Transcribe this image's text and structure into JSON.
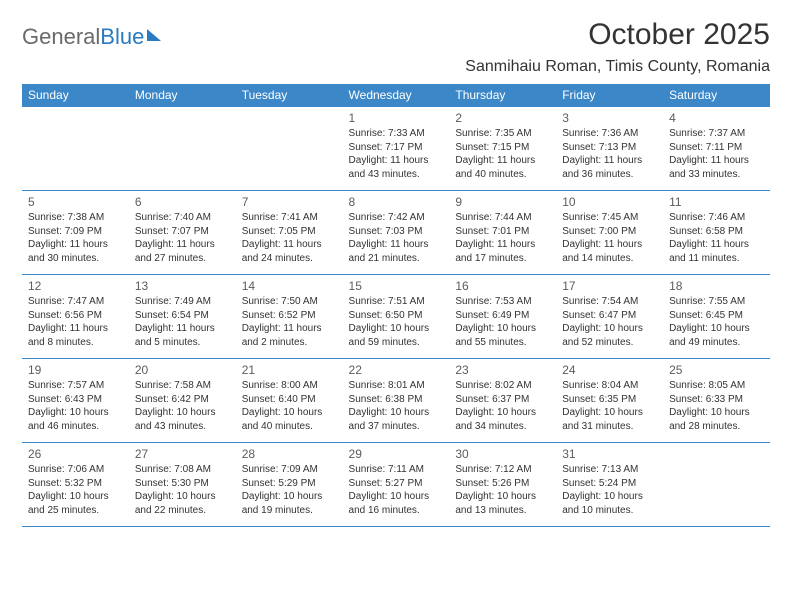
{
  "brand": {
    "part1": "General",
    "part2": "Blue"
  },
  "title": "October 2025",
  "location": "Sanmihaiu Roman, Timis County, Romania",
  "colors": {
    "header_bg": "#3b87c8",
    "header_text": "#ffffff",
    "rule": "#3b87c8",
    "text": "#333333",
    "daynum": "#5c5c5c",
    "logo_gray": "#6a6a6a",
    "logo_blue": "#2a7ac0"
  },
  "day_headers": [
    "Sunday",
    "Monday",
    "Tuesday",
    "Wednesday",
    "Thursday",
    "Friday",
    "Saturday"
  ],
  "weeks": [
    [
      null,
      null,
      null,
      {
        "n": "1",
        "sr": "7:33 AM",
        "ss": "7:17 PM",
        "dl": "11 hours and 43 minutes."
      },
      {
        "n": "2",
        "sr": "7:35 AM",
        "ss": "7:15 PM",
        "dl": "11 hours and 40 minutes."
      },
      {
        "n": "3",
        "sr": "7:36 AM",
        "ss": "7:13 PM",
        "dl": "11 hours and 36 minutes."
      },
      {
        "n": "4",
        "sr": "7:37 AM",
        "ss": "7:11 PM",
        "dl": "11 hours and 33 minutes."
      }
    ],
    [
      {
        "n": "5",
        "sr": "7:38 AM",
        "ss": "7:09 PM",
        "dl": "11 hours and 30 minutes."
      },
      {
        "n": "6",
        "sr": "7:40 AM",
        "ss": "7:07 PM",
        "dl": "11 hours and 27 minutes."
      },
      {
        "n": "7",
        "sr": "7:41 AM",
        "ss": "7:05 PM",
        "dl": "11 hours and 24 minutes."
      },
      {
        "n": "8",
        "sr": "7:42 AM",
        "ss": "7:03 PM",
        "dl": "11 hours and 21 minutes."
      },
      {
        "n": "9",
        "sr": "7:44 AM",
        "ss": "7:01 PM",
        "dl": "11 hours and 17 minutes."
      },
      {
        "n": "10",
        "sr": "7:45 AM",
        "ss": "7:00 PM",
        "dl": "11 hours and 14 minutes."
      },
      {
        "n": "11",
        "sr": "7:46 AM",
        "ss": "6:58 PM",
        "dl": "11 hours and 11 minutes."
      }
    ],
    [
      {
        "n": "12",
        "sr": "7:47 AM",
        "ss": "6:56 PM",
        "dl": "11 hours and 8 minutes."
      },
      {
        "n": "13",
        "sr": "7:49 AM",
        "ss": "6:54 PM",
        "dl": "11 hours and 5 minutes."
      },
      {
        "n": "14",
        "sr": "7:50 AM",
        "ss": "6:52 PM",
        "dl": "11 hours and 2 minutes."
      },
      {
        "n": "15",
        "sr": "7:51 AM",
        "ss": "6:50 PM",
        "dl": "10 hours and 59 minutes."
      },
      {
        "n": "16",
        "sr": "7:53 AM",
        "ss": "6:49 PM",
        "dl": "10 hours and 55 minutes."
      },
      {
        "n": "17",
        "sr": "7:54 AM",
        "ss": "6:47 PM",
        "dl": "10 hours and 52 minutes."
      },
      {
        "n": "18",
        "sr": "7:55 AM",
        "ss": "6:45 PM",
        "dl": "10 hours and 49 minutes."
      }
    ],
    [
      {
        "n": "19",
        "sr": "7:57 AM",
        "ss": "6:43 PM",
        "dl": "10 hours and 46 minutes."
      },
      {
        "n": "20",
        "sr": "7:58 AM",
        "ss": "6:42 PM",
        "dl": "10 hours and 43 minutes."
      },
      {
        "n": "21",
        "sr": "8:00 AM",
        "ss": "6:40 PM",
        "dl": "10 hours and 40 minutes."
      },
      {
        "n": "22",
        "sr": "8:01 AM",
        "ss": "6:38 PM",
        "dl": "10 hours and 37 minutes."
      },
      {
        "n": "23",
        "sr": "8:02 AM",
        "ss": "6:37 PM",
        "dl": "10 hours and 34 minutes."
      },
      {
        "n": "24",
        "sr": "8:04 AM",
        "ss": "6:35 PM",
        "dl": "10 hours and 31 minutes."
      },
      {
        "n": "25",
        "sr": "8:05 AM",
        "ss": "6:33 PM",
        "dl": "10 hours and 28 minutes."
      }
    ],
    [
      {
        "n": "26",
        "sr": "7:06 AM",
        "ss": "5:32 PM",
        "dl": "10 hours and 25 minutes."
      },
      {
        "n": "27",
        "sr": "7:08 AM",
        "ss": "5:30 PM",
        "dl": "10 hours and 22 minutes."
      },
      {
        "n": "28",
        "sr": "7:09 AM",
        "ss": "5:29 PM",
        "dl": "10 hours and 19 minutes."
      },
      {
        "n": "29",
        "sr": "7:11 AM",
        "ss": "5:27 PM",
        "dl": "10 hours and 16 minutes."
      },
      {
        "n": "30",
        "sr": "7:12 AM",
        "ss": "5:26 PM",
        "dl": "10 hours and 13 minutes."
      },
      {
        "n": "31",
        "sr": "7:13 AM",
        "ss": "5:24 PM",
        "dl": "10 hours and 10 minutes."
      },
      null
    ]
  ],
  "labels": {
    "sunrise": "Sunrise:",
    "sunset": "Sunset:",
    "daylight": "Daylight:"
  }
}
